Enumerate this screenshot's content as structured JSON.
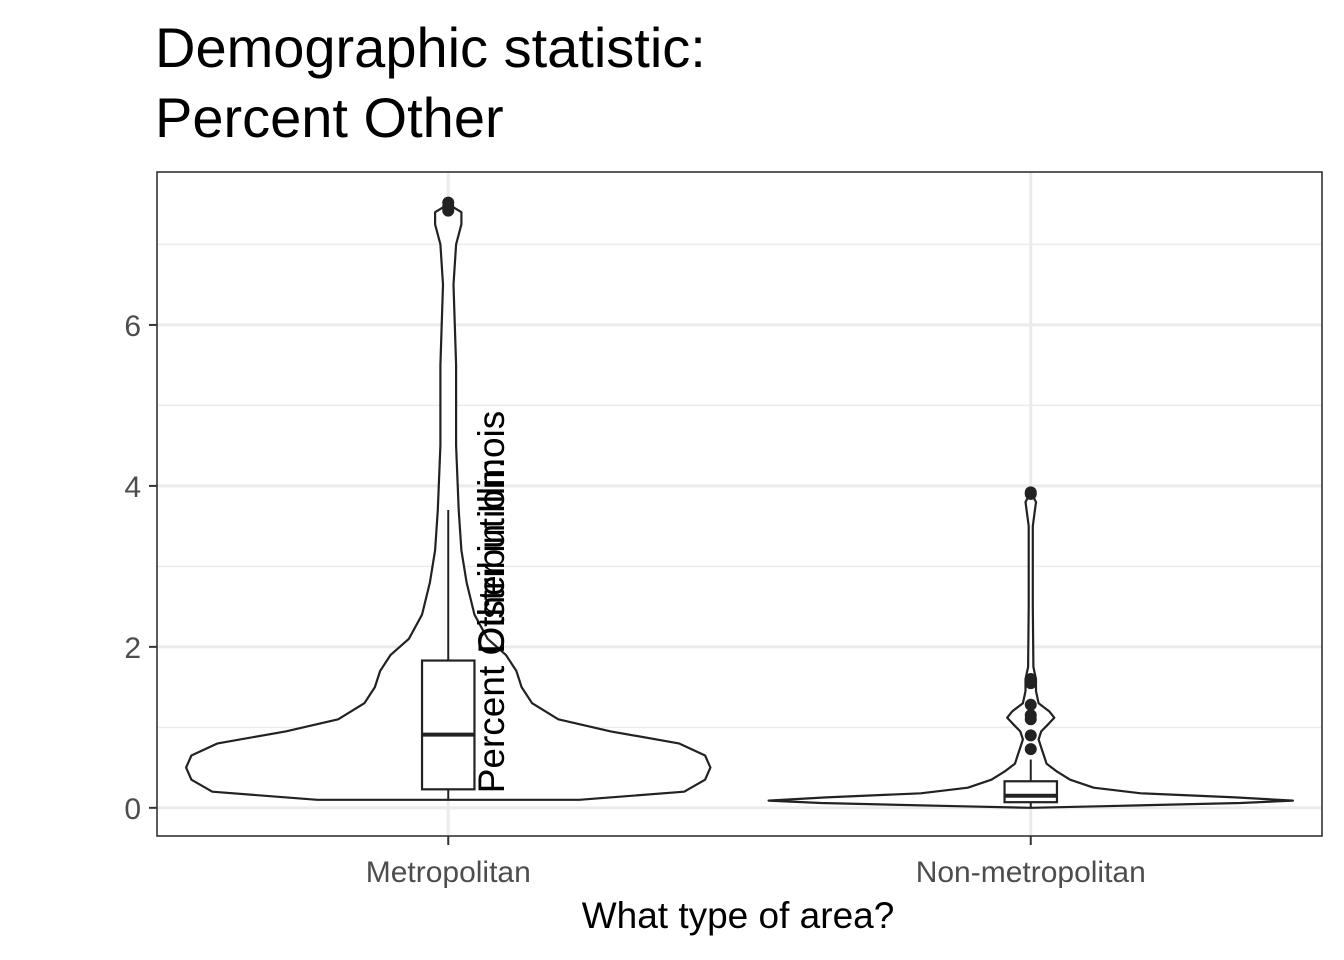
{
  "chart_data": {
    "type": "violin",
    "title_lines": [
      "Demographic statistic:",
      "Percent Other"
    ],
    "xlabel": "What type of area?",
    "ylabel_lines": [
      "Distribution:",
      "Percent Other in Illinois"
    ],
    "categories": [
      "Metropolitan",
      "Non-metropolitan"
    ],
    "y_ticks": [
      0,
      2,
      4,
      6
    ],
    "ylim": [
      -0.35,
      7.9
    ],
    "grid": true,
    "legend": "none",
    "colors": {
      "line": "#222222",
      "grid": "#ebebeb",
      "panel_border": "#333333",
      "tick_text": "#4d4d4d"
    },
    "groups": [
      {
        "category": "Metropolitan",
        "violin_profile": [
          [
            0.1,
            0.5
          ],
          [
            0.2,
            0.9
          ],
          [
            0.35,
            0.98
          ],
          [
            0.5,
            1.0
          ],
          [
            0.65,
            0.98
          ],
          [
            0.8,
            0.88
          ],
          [
            0.95,
            0.62
          ],
          [
            1.1,
            0.42
          ],
          [
            1.3,
            0.32
          ],
          [
            1.5,
            0.28
          ],
          [
            1.7,
            0.26
          ],
          [
            1.9,
            0.22
          ],
          [
            2.1,
            0.15
          ],
          [
            2.4,
            0.1
          ],
          [
            2.8,
            0.07
          ],
          [
            3.2,
            0.05
          ],
          [
            3.7,
            0.04
          ],
          [
            4.5,
            0.03
          ],
          [
            5.5,
            0.03
          ],
          [
            6.5,
            0.02
          ],
          [
            7.0,
            0.03
          ],
          [
            7.25,
            0.05
          ],
          [
            7.4,
            0.05
          ],
          [
            7.5,
            0.0
          ]
        ],
        "box": {
          "q1": 0.23,
          "median": 0.91,
          "q3": 1.83,
          "whisker_low": 0.1,
          "whisker_high": 3.7
        },
        "outliers": [
          7.42,
          7.47,
          7.52
        ]
      },
      {
        "category": "Non-metropolitan",
        "violin_profile": [
          [
            0.0,
            0.0
          ],
          [
            0.02,
            0.28
          ],
          [
            0.06,
            0.8
          ],
          [
            0.09,
            1.0
          ],
          [
            0.13,
            0.78
          ],
          [
            0.18,
            0.42
          ],
          [
            0.25,
            0.24
          ],
          [
            0.35,
            0.15
          ],
          [
            0.45,
            0.1
          ],
          [
            0.55,
            0.06
          ],
          [
            0.65,
            0.05
          ],
          [
            0.75,
            0.04
          ],
          [
            0.85,
            0.03
          ],
          [
            0.95,
            0.04
          ],
          [
            1.05,
            0.07
          ],
          [
            1.12,
            0.09
          ],
          [
            1.2,
            0.07
          ],
          [
            1.3,
            0.03
          ],
          [
            1.45,
            0.02
          ],
          [
            1.6,
            0.02
          ],
          [
            1.75,
            0.01
          ],
          [
            2.5,
            0.008
          ],
          [
            3.5,
            0.008
          ],
          [
            3.8,
            0.02
          ],
          [
            3.92,
            0.0
          ]
        ],
        "box": {
          "q1": 0.07,
          "median": 0.15,
          "q3": 0.33,
          "whisker_low": 0.0,
          "whisker_high": 0.6
        },
        "outliers": [
          0.73,
          0.9,
          1.1,
          1.15,
          1.28,
          1.55,
          1.6,
          3.9,
          3.92
        ]
      }
    ]
  }
}
